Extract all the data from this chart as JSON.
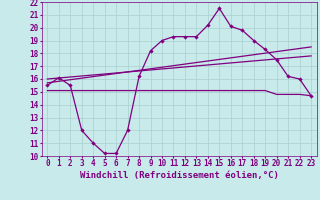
{
  "background_color": "#c8eaea",
  "grid_color": "#a8d0d0",
  "line_color": "#800080",
  "xlim": [
    -0.5,
    23.5
  ],
  "ylim": [
    10,
    22
  ],
  "xlabel": "Windchill (Refroidissement éolien,°C)",
  "xlabel_fontsize": 6.5,
  "xtick_labels": [
    "0",
    "1",
    "2",
    "3",
    "4",
    "5",
    "6",
    "7",
    "8",
    "9",
    "10",
    "11",
    "12",
    "13",
    "14",
    "15",
    "16",
    "17",
    "18",
    "19",
    "20",
    "21",
    "22",
    "23"
  ],
  "xtick_positions": [
    0,
    1,
    2,
    3,
    4,
    5,
    6,
    7,
    8,
    9,
    10,
    11,
    12,
    13,
    14,
    15,
    16,
    17,
    18,
    19,
    20,
    21,
    22,
    23
  ],
  "yticks": [
    10,
    11,
    12,
    13,
    14,
    15,
    16,
    17,
    18,
    19,
    20,
    21,
    22
  ],
  "tick_fontsize": 5.5,
  "line1_x": [
    0,
    1,
    2,
    3,
    4,
    5,
    6,
    7,
    8,
    9,
    10,
    11,
    12,
    13,
    14,
    15,
    16,
    17,
    18,
    19,
    20,
    21,
    22,
    23
  ],
  "line1_y": [
    15.5,
    16.1,
    15.5,
    12.0,
    11.0,
    10.2,
    10.2,
    12.0,
    16.2,
    18.2,
    19.0,
    19.3,
    19.3,
    19.3,
    20.2,
    21.5,
    20.1,
    19.8,
    19.0,
    18.3,
    17.5,
    16.2,
    16.0,
    14.7
  ],
  "line1_marker_x": [
    0,
    1,
    2,
    3,
    4,
    5,
    6,
    7,
    8,
    9,
    10,
    11,
    12,
    13,
    14,
    15,
    16,
    17,
    18,
    19,
    20,
    21,
    22,
    23
  ],
  "line1_marker_y": [
    15.5,
    16.1,
    15.5,
    12.0,
    11.0,
    10.2,
    10.2,
    12.0,
    16.2,
    18.2,
    19.0,
    19.3,
    19.3,
    19.3,
    20.2,
    21.5,
    20.1,
    19.8,
    19.0,
    18.3,
    17.5,
    16.2,
    16.0,
    14.7
  ],
  "line2_x": [
    0,
    23
  ],
  "line2_y": [
    15.7,
    18.5
  ],
  "line3_x": [
    0,
    23
  ],
  "line3_y": [
    16.0,
    17.8
  ],
  "line4_x": [
    0,
    1,
    2,
    3,
    4,
    5,
    6,
    7,
    8,
    9,
    10,
    11,
    12,
    13,
    14,
    15,
    16,
    17,
    18,
    19,
    20,
    21,
    22,
    23
  ],
  "line4_y": [
    15.1,
    15.1,
    15.1,
    15.1,
    15.1,
    15.1,
    15.1,
    15.1,
    15.1,
    15.1,
    15.1,
    15.1,
    15.1,
    15.1,
    15.1,
    15.1,
    15.1,
    15.1,
    15.1,
    15.1,
    14.8,
    14.8,
    14.8,
    14.7
  ]
}
